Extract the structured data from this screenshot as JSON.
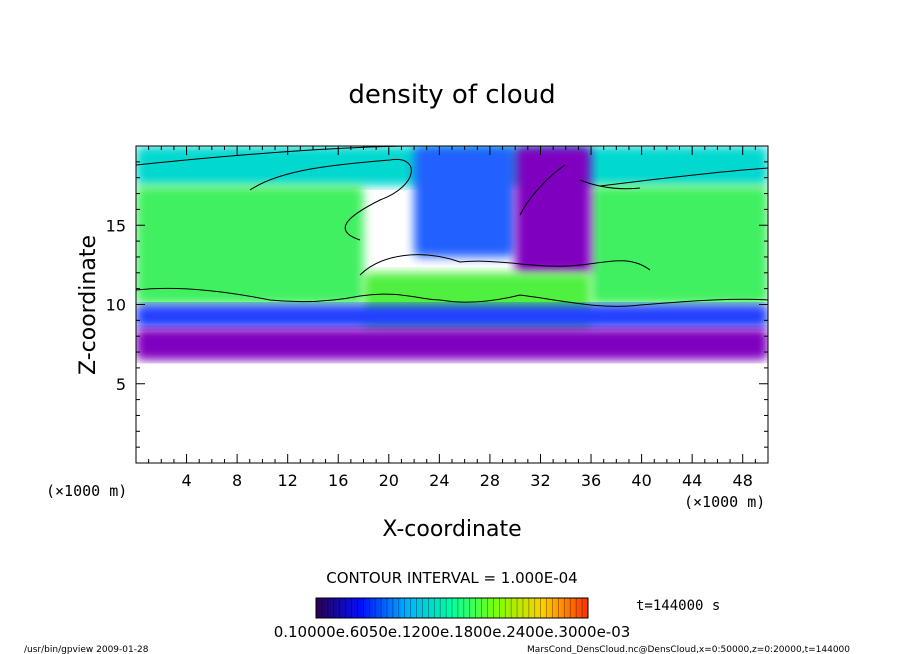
{
  "chart_data": {
    "type": "heatmap",
    "title": "density of cloud",
    "xlabel": "X-coordinate",
    "ylabel": "Z-coordinate",
    "x_unit": "(×1000 m)",
    "y_unit": "(×1000 m)",
    "xlim": [
      0,
      50
    ],
    "ylim": [
      0,
      20
    ],
    "x_ticks": [
      "4",
      "8",
      "12",
      "16",
      "20",
      "24",
      "28",
      "32",
      "36",
      "40",
      "44",
      "48"
    ],
    "y_ticks": [
      "5",
      "10",
      "15"
    ],
    "contour_interval": "CONTOUR INTERVAL = 1.000E-04",
    "time_label": "t=144000 s",
    "colorbar_labels": "0.10000e.6050e.1200e.1800e.2400e.3000e-03",
    "colorbar_colors": [
      "#2a0050",
      "#0010ff",
      "#00b0ff",
      "#00ffa0",
      "#80ff00",
      "#ffd000",
      "#ff3000"
    ],
    "footer_left": "/usr/bin/gpview   2009-01-28",
    "footer_right": "MarsCond_DensCloud.nc@DensCloud,x=0:50000,z=0:20000,t=144000",
    "regions": [
      {
        "name": "upper-layer",
        "z_range": [
          17.5,
          20
        ],
        "color": "#00d8d0"
      },
      {
        "name": "green-layer-left",
        "x_range": [
          0,
          18
        ],
        "z_range": [
          10,
          17.5
        ],
        "color": "#40f060"
      },
      {
        "name": "green-layer-right",
        "x_range": [
          36,
          50
        ],
        "z_range": [
          10,
          17.5
        ],
        "color": "#40f060"
      },
      {
        "name": "blue-plume",
        "x_range": [
          22,
          30
        ],
        "z_range": [
          13,
          20
        ],
        "color": "#2060ff"
      },
      {
        "name": "purple-plume",
        "x_range": [
          30,
          36
        ],
        "z_range": [
          12,
          20
        ],
        "color": "#8000c0"
      },
      {
        "name": "inner-green",
        "x_range": [
          18,
          36
        ],
        "z_range": [
          8.5,
          12
        ],
        "color": "#50f040"
      },
      {
        "name": "base-blue",
        "z_range": [
          8.5,
          10
        ],
        "color": "#2040ff"
      },
      {
        "name": "base-purple",
        "z_range": [
          6.5,
          8.5
        ],
        "color": "#8000c0"
      }
    ]
  }
}
